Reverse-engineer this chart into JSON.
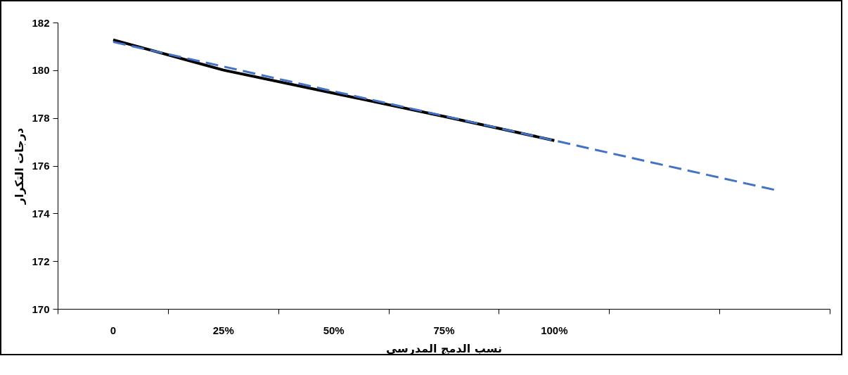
{
  "chart_data": {
    "type": "line",
    "xlabel": "نسب الدمج المدرسي",
    "ylabel": "درجات التكرار",
    "categories": [
      "0",
      "25%",
      "50%",
      "75%",
      "100%",
      null,
      null
    ],
    "series": [
      {
        "color": "#000000",
        "line_style": "solid",
        "values": [
          181.29,
          180.02,
          179.05,
          178.08,
          177.07,
          null,
          null
        ]
      },
      {
        "color": "#4472c4",
        "line_style": "dashed",
        "values": [
          181.2,
          180.17,
          179.13,
          178.1,
          177.07,
          176.03,
          175.0
        ]
      }
    ],
    "ylim": [
      170,
      182
    ],
    "yticks": [
      170,
      172,
      174,
      176,
      178,
      180,
      182
    ],
    "grid": false,
    "marker": "none"
  }
}
